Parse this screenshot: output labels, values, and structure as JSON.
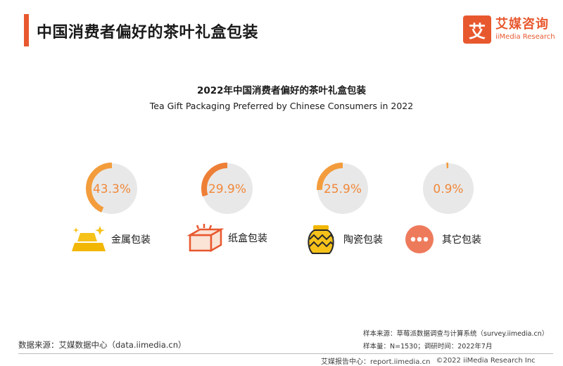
{
  "header": {
    "title": "中国消费者偏好的茶叶礼盒包装",
    "logo_mark": "艾",
    "logo_cn": "艾媒咨询",
    "logo_en": "iiMedia Research"
  },
  "chart_data": {
    "type": "pie",
    "title": "2022年中国消费者偏好的茶叶礼盒包装",
    "subtitle": "Tea Gift Packaging Preferred by Chinese Consumers in 2022",
    "categories": [
      "金属包装",
      "纸盒包装",
      "陶瓷包装",
      "其它包装"
    ],
    "values": [
      43.3,
      29.9,
      25.9,
      0.9
    ],
    "value_labels": [
      "43.3%",
      "29.9%",
      "25.9%",
      "0.9%"
    ],
    "unit": "%",
    "colors": {
      "arc": "#f39c3c",
      "arc_alt": "#ee7f36",
      "track": "#e8e8e8",
      "label": "#f0883a"
    },
    "icons": [
      "gold-bars-icon",
      "cardboard-box-icon",
      "ceramic-pot-icon",
      "more-dots-icon"
    ]
  },
  "footer": {
    "source": "数据来源：艾媒数据中心（data.iimedia.cn）",
    "sample_source": "样本来源：草莓派数据调查与计算系统（survey.iimedia.cn）",
    "sample_info": "样本量：N=1530；调研时间：2022年7月",
    "report_center": "艾媒报告中心：report.iimedia.cn",
    "copyright": "©2022  iiMedia Research  Inc"
  }
}
